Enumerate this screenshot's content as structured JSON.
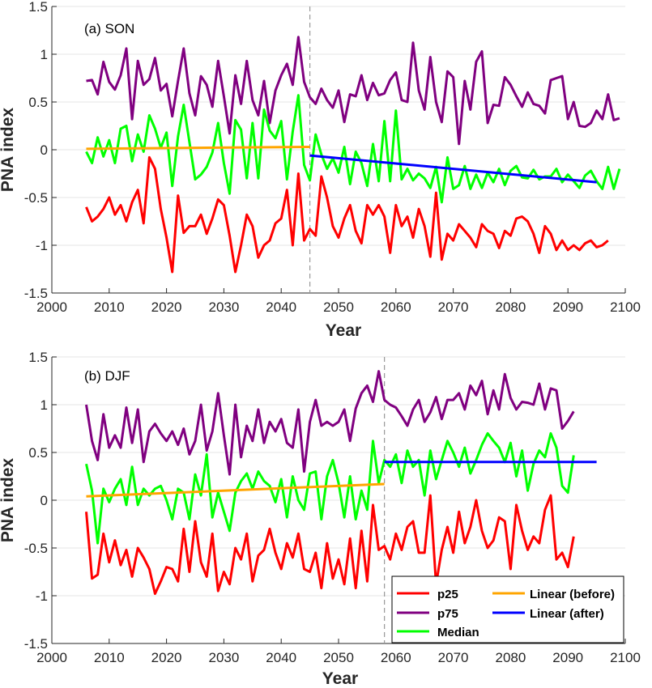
{
  "colors": {
    "p25": "#ff0000",
    "p75": "#800080",
    "median": "#00ff00",
    "linear_before": "#ffa500",
    "linear_after": "#0000ff",
    "grid": "#e4e4e4",
    "axis": "#262626",
    "break_line": "#999999"
  },
  "legend": {
    "p25": "p25",
    "p75": "p75",
    "median": "Median",
    "linear_before": "Linear (before)",
    "linear_after": "Linear (after)"
  },
  "chart_data": [
    {
      "type": "line",
      "title": "(a) SON",
      "xlabel": "Year",
      "ylabel": "PNA index",
      "xlim": [
        2000,
        2100
      ],
      "ylim": [
        -1.5,
        1.5
      ],
      "xticks": [
        2000,
        2010,
        2020,
        2030,
        2040,
        2050,
        2060,
        2070,
        2080,
        2090,
        2100
      ],
      "yticks": [
        -1.5,
        -1,
        -0.5,
        0,
        0.5,
        1,
        1.5
      ],
      "grid": "horizontal",
      "breakpoint": 2045,
      "x_start": 2006,
      "series": [
        {
          "name": "p75",
          "values": [
            0.72,
            0.73,
            0.58,
            0.92,
            0.71,
            0.63,
            0.78,
            1.06,
            0.32,
            0.93,
            0.68,
            0.74,
            0.96,
            0.62,
            0.69,
            0.35,
            0.72,
            1.06,
            0.59,
            0.36,
            0.77,
            0.68,
            0.45,
            0.93,
            0.56,
            0.17,
            0.78,
            0.48,
            0.93,
            0.52,
            0.36,
            0.72,
            0.28,
            0.62,
            0.78,
            0.9,
            0.68,
            1.18,
            0.71,
            0.55,
            0.48,
            0.64,
            0.52,
            0.44,
            0.62,
            0.29,
            0.58,
            0.56,
            0.78,
            0.52,
            0.7,
            0.57,
            0.59,
            0.73,
            0.81,
            0.52,
            0.5,
            1.12,
            0.62,
            0.42,
            0.97,
            0.5,
            0.29,
            0.82,
            0.76,
            0.06,
            0.72,
            0.42,
            0.92,
            1.03,
            0.28,
            0.47,
            0.46,
            0.76,
            0.68,
            0.56,
            0.45,
            0.6,
            0.48,
            0.46,
            0.38,
            0.73,
            0.75,
            0.77,
            0.32,
            0.5,
            0.25,
            0.24,
            0.28,
            0.41,
            0.32,
            0.58,
            0.31,
            0.33
          ]
        },
        {
          "name": "Median",
          "values": [
            -0.02,
            -0.14,
            0.13,
            -0.07,
            0.1,
            -0.14,
            0.22,
            0.25,
            -0.12,
            0.16,
            -0.02,
            0.36,
            0.22,
            0.02,
            0.18,
            -0.38,
            0.14,
            0.47,
            0.08,
            -0.31,
            -0.26,
            -0.18,
            -0.03,
            0.28,
            -0.14,
            -0.46,
            0.31,
            0.21,
            -0.3,
            0.28,
            -0.3,
            0.42,
            0.2,
            0.12,
            0.3,
            -0.31,
            0.19,
            0.57,
            -0.16,
            -0.32,
            0.16,
            -0.05,
            -0.2,
            -0.09,
            -0.24,
            0.03,
            -0.36,
            -0.02,
            -0.14,
            -0.38,
            0.06,
            -0.33,
            0.3,
            -0.33,
            0.41,
            -0.31,
            -0.2,
            -0.32,
            -0.25,
            -0.3,
            -0.4,
            -0.18,
            -0.55,
            -0.08,
            -0.41,
            -0.37,
            -0.17,
            -0.41,
            -0.26,
            -0.4,
            -0.24,
            -0.34,
            -0.2,
            -0.37,
            -0.22,
            -0.17,
            -0.29,
            -0.3,
            -0.21,
            -0.31,
            -0.28,
            -0.28,
            -0.2,
            -0.34,
            -0.26,
            -0.33,
            -0.4,
            -0.27,
            -0.22,
            -0.33,
            -0.41,
            -0.18,
            -0.41,
            -0.2
          ]
        },
        {
          "name": "p25",
          "values": [
            -0.6,
            -0.75,
            -0.7,
            -0.62,
            -0.5,
            -0.68,
            -0.58,
            -0.75,
            -0.55,
            -0.42,
            -0.77,
            -0.08,
            -0.2,
            -0.62,
            -0.92,
            -1.28,
            -0.48,
            -0.87,
            -0.8,
            -0.8,
            -0.68,
            -0.88,
            -0.72,
            -0.52,
            -0.58,
            -0.9,
            -1.28,
            -1.0,
            -0.68,
            -0.8,
            -1.13,
            -1.0,
            -0.95,
            -0.77,
            -0.72,
            -0.42,
            -1.0,
            -0.25,
            -0.95,
            -0.83,
            -0.9,
            -0.28,
            -0.5,
            -0.8,
            -0.92,
            -0.72,
            -0.58,
            -0.85,
            -0.98,
            -0.58,
            -0.68,
            -0.58,
            -0.7,
            -1.08,
            -0.58,
            -0.8,
            -0.7,
            -0.92,
            -0.62,
            -0.8,
            -1.12,
            -0.45,
            -1.15,
            -0.88,
            -0.95,
            -0.78,
            -0.85,
            -0.92,
            -1.02,
            -0.78,
            -0.85,
            -0.88,
            -1.03,
            -0.85,
            -0.9,
            -0.72,
            -0.7,
            -0.75,
            -0.88,
            -1.08,
            -0.8,
            -0.88,
            -1.05,
            -0.95,
            -1.05,
            -1.0,
            -1.05,
            -0.98,
            -0.95,
            -1.02,
            -1.0,
            -0.95
          ]
        }
      ],
      "linear_before": {
        "name": "Linear (before)",
        "x": [
          2006,
          2045
        ],
        "y": [
          0.01,
          0.03
        ]
      },
      "linear_after": {
        "name": "Linear (after)",
        "x": [
          2045,
          2095
        ],
        "y": [
          -0.06,
          -0.34
        ]
      }
    },
    {
      "type": "line",
      "title": "(b) DJF",
      "xlabel": "Year",
      "ylabel": "PNA index",
      "xlim": [
        2000,
        2100
      ],
      "ylim": [
        -1.5,
        1.5
      ],
      "xticks": [
        2000,
        2010,
        2020,
        2030,
        2040,
        2050,
        2060,
        2070,
        2080,
        2090,
        2100
      ],
      "yticks": [
        -1.5,
        -1,
        -0.5,
        0,
        0.5,
        1,
        1.5
      ],
      "grid": "horizontal",
      "breakpoint": 2058,
      "x_start": 2006,
      "legend_position": "bottom-right",
      "series": [
        {
          "name": "p75",
          "values": [
            1.0,
            0.62,
            0.42,
            0.9,
            0.55,
            0.68,
            0.55,
            0.97,
            0.6,
            0.95,
            0.4,
            0.72,
            0.8,
            0.7,
            0.62,
            0.72,
            0.58,
            0.75,
            0.48,
            0.62,
            1.0,
            0.52,
            0.72,
            1.12,
            0.68,
            0.27,
            1.0,
            0.45,
            0.78,
            0.62,
            0.95,
            0.6,
            0.82,
            0.72,
            0.85,
            0.6,
            0.55,
            0.95,
            0.3,
            0.82,
            1.05,
            0.78,
            0.82,
            0.78,
            0.82,
            0.95,
            0.62,
            0.96,
            1.12,
            1.2,
            1.03,
            1.35,
            1.05,
            1.0,
            0.97,
            0.88,
            0.78,
            0.95,
            1.05,
            0.82,
            0.92,
            1.08,
            0.85,
            1.05,
            1.05,
            1.12,
            0.95,
            1.2,
            1.1,
            1.25,
            0.9,
            1.15,
            0.95,
            1.32,
            1.07,
            0.95,
            1.03,
            1.02,
            1.0,
            1.22,
            0.95,
            1.17,
            1.15,
            0.75,
            0.83,
            0.93
          ]
        },
        {
          "name": "Median",
          "values": [
            0.38,
            0.1,
            -0.45,
            0.12,
            -0.02,
            0.12,
            0.22,
            -0.05,
            0.35,
            -0.05,
            0.12,
            0.05,
            0.12,
            0.15,
            0.0,
            -0.2,
            0.12,
            0.08,
            -0.2,
            0.27,
            0.05,
            0.48,
            -0.18,
            0.08,
            -0.12,
            -0.32,
            0.08,
            0.2,
            0.28,
            0.12,
            0.3,
            0.2,
            0.15,
            -0.02,
            0.22,
            -0.18,
            0.25,
            0.0,
            -0.1,
            0.28,
            0.3,
            -0.2,
            0.25,
            0.42,
            0.18,
            -0.18,
            0.25,
            -0.2,
            0.1,
            -0.1,
            0.62,
            0.18,
            0.42,
            0.35,
            0.48,
            0.18,
            0.52,
            0.35,
            0.42,
            0.05,
            0.52,
            0.22,
            0.42,
            0.62,
            0.5,
            0.35,
            0.55,
            0.28,
            0.42,
            0.58,
            0.7,
            0.62,
            0.55,
            0.4,
            0.6,
            0.25,
            0.52,
            0.1,
            0.38,
            0.52,
            0.45,
            0.7,
            0.55,
            0.15,
            0.08,
            0.47
          ]
        },
        {
          "name": "p25",
          "values": [
            -0.12,
            -0.82,
            -0.78,
            -0.35,
            -0.65,
            -0.42,
            -0.68,
            -0.52,
            -0.8,
            -0.5,
            -0.6,
            -0.72,
            -0.98,
            -0.85,
            -0.7,
            -0.72,
            -0.85,
            -0.3,
            -0.75,
            -0.22,
            -0.65,
            -0.8,
            -0.35,
            -0.95,
            -0.75,
            -0.88,
            -0.5,
            -0.62,
            -0.35,
            -0.85,
            -0.58,
            -0.52,
            -0.3,
            -0.55,
            -0.72,
            -0.45,
            -0.6,
            -0.35,
            -0.72,
            -0.75,
            -0.55,
            -0.92,
            -0.45,
            -0.82,
            -0.62,
            -0.88,
            -0.4,
            -0.92,
            -0.32,
            -0.85,
            -0.05,
            -0.52,
            -0.48,
            -0.62,
            -0.35,
            -0.52,
            -0.28,
            -0.22,
            -0.55,
            -0.55,
            0.05,
            -0.88,
            -0.52,
            -0.28,
            -0.55,
            -0.12,
            -0.45,
            -0.28,
            0.0,
            -0.32,
            -0.5,
            -0.42,
            -0.18,
            -0.22,
            -0.72,
            -0.05,
            -0.32,
            -0.52,
            -0.38,
            -0.45,
            -0.1,
            0.05,
            -0.62,
            -0.55,
            -0.7,
            -0.38
          ]
        }
      ],
      "linear_before": {
        "name": "Linear (before)",
        "x": [
          2006,
          2058
        ],
        "y": [
          0.04,
          0.17
        ]
      },
      "linear_after": {
        "name": "Linear (after)",
        "x": [
          2058,
          2095
        ],
        "y": [
          0.4,
          0.4
        ]
      }
    }
  ]
}
